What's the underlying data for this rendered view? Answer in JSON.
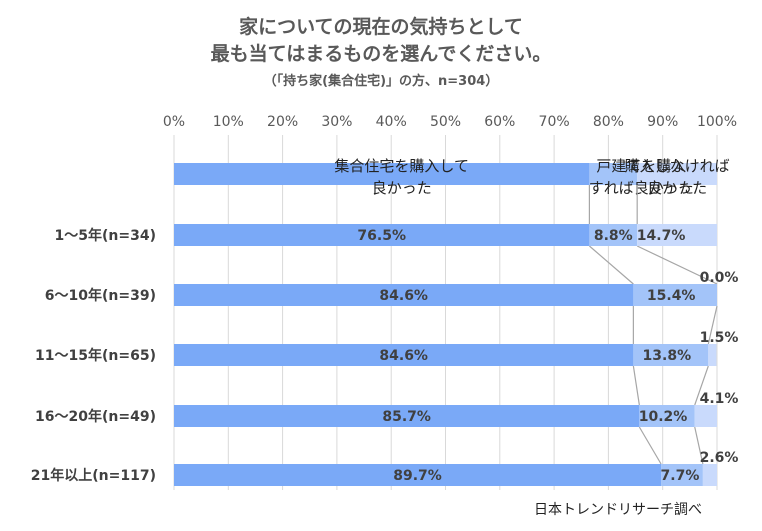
{
  "title_line1": "家についての現在の気持ちとして",
  "title_line2": "最も当てはまるものを選んでください。",
  "subtitle": "（「持ち家(集合住宅)」の方、n=304）",
  "source": "日本トレンドリサーチ調べ",
  "colors": {
    "series1": "#7aa9f7",
    "series2": "#a3c4f9",
    "series3": "#c9dafc",
    "grid": "#d9d9d9",
    "connector": "#a6a6a6"
  },
  "chart_data": {
    "type": "bar",
    "orientation": "horizontal",
    "stacked": true,
    "xlim": [
      0,
      100
    ],
    "x_ticks": [
      "0%",
      "10%",
      "20%",
      "30%",
      "40%",
      "50%",
      "60%",
      "70%",
      "80%",
      "90%",
      "100%"
    ],
    "legend_position": "top (stacked bar)",
    "legend_lines": [
      [
        "集合住宅を購入して",
        "良かった"
      ],
      [
        "戸建てを購入",
        "すれば良かった"
      ],
      [
        "購入しなければ",
        "良かった"
      ]
    ],
    "categories": [
      "1～5年(n=34)",
      "6～10年(n=39)",
      "11～15年(n=65)",
      "16～20年(n=49)",
      "21年以上(n=117)"
    ],
    "series": [
      {
        "name": "集合住宅を購入して良かった",
        "values": [
          76.5,
          84.6,
          84.6,
          85.7,
          89.7
        ],
        "labels": [
          "76.5%",
          "84.6%",
          "84.6%",
          "85.7%",
          "89.7%"
        ]
      },
      {
        "name": "戸建てを購入すれば良かった",
        "values": [
          8.8,
          15.4,
          13.8,
          10.2,
          7.7
        ],
        "labels": [
          "8.8%",
          "15.4%",
          "13.8%",
          "10.2%",
          "7.7%"
        ]
      },
      {
        "name": "購入しなければ良かった",
        "values": [
          14.7,
          0.0,
          1.5,
          4.1,
          2.6
        ],
        "labels": [
          "14.7%",
          "0.0%",
          "1.5%",
          "4.1%",
          "2.6%"
        ]
      }
    ],
    "grid": true
  }
}
